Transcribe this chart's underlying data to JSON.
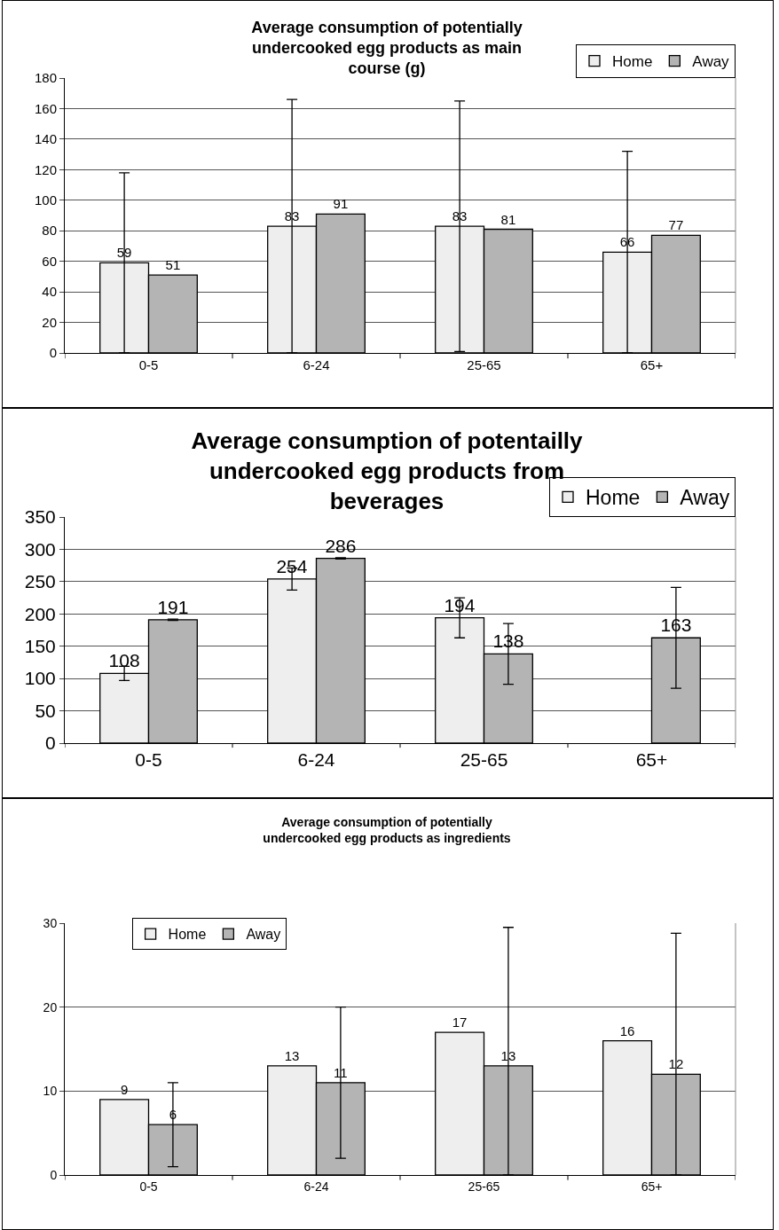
{
  "chart_data": [
    {
      "type": "bar",
      "title": "Average consumption of potentially undercooked egg products as main course (g)",
      "categories": [
        "0-5",
        "6-24",
        "25-65",
        "65+"
      ],
      "series": [
        {
          "name": "Home",
          "color": "#eeeeee",
          "values": [
            59,
            83,
            83,
            66
          ],
          "errors": [
            59,
            83,
            82,
            66
          ]
        },
        {
          "name": "Away",
          "color": "#b4b4b4",
          "values": [
            51,
            91,
            81,
            77
          ]
        }
      ],
      "ylim": [
        0,
        180
      ],
      "yticks": [
        0,
        20,
        40,
        60,
        80,
        100,
        120,
        140,
        160,
        180
      ],
      "grid": "y",
      "legend": "top right",
      "data_labels": true
    },
    {
      "type": "bar",
      "title": "Average consumption of potentailly undercooked egg products from beverages",
      "categories": [
        "0-5",
        "6-24",
        "25-65",
        "65+"
      ],
      "series": [
        {
          "name": "Home",
          "color": "#eeeeee",
          "values": [
            108,
            254,
            194,
            null
          ],
          "errors": [
            11,
            17,
            31,
            null
          ]
        },
        {
          "name": "Away",
          "color": "#b4b4b4",
          "values": [
            191,
            286,
            138,
            163
          ],
          "errors": [
            1,
            1,
            47,
            78
          ]
        }
      ],
      "ylim": [
        0,
        350
      ],
      "yticks": [
        0,
        50,
        100,
        150,
        200,
        250,
        300,
        350
      ],
      "grid": "y",
      "legend": "top right",
      "data_labels": true
    },
    {
      "type": "bar",
      "title": "Average consumption of potentially undercooked egg products as ingredients",
      "categories": [
        "0-5",
        "6-24",
        "25-65",
        "65+"
      ],
      "series": [
        {
          "name": "Home",
          "color": "#eeeeee",
          "values": [
            9,
            13,
            17,
            16
          ]
        },
        {
          "name": "Away",
          "color": "#b4b4b4",
          "values": [
            6,
            11,
            13,
            12
          ],
          "errors": [
            5,
            9,
            [
              0,
              29.5
            ],
            [
              0,
              28.8
            ]
          ]
        }
      ],
      "ylim": [
        0,
        30
      ],
      "yticks": [
        0,
        10,
        20,
        30
      ],
      "grid": "y",
      "legend": "top left",
      "data_labels": true
    }
  ]
}
